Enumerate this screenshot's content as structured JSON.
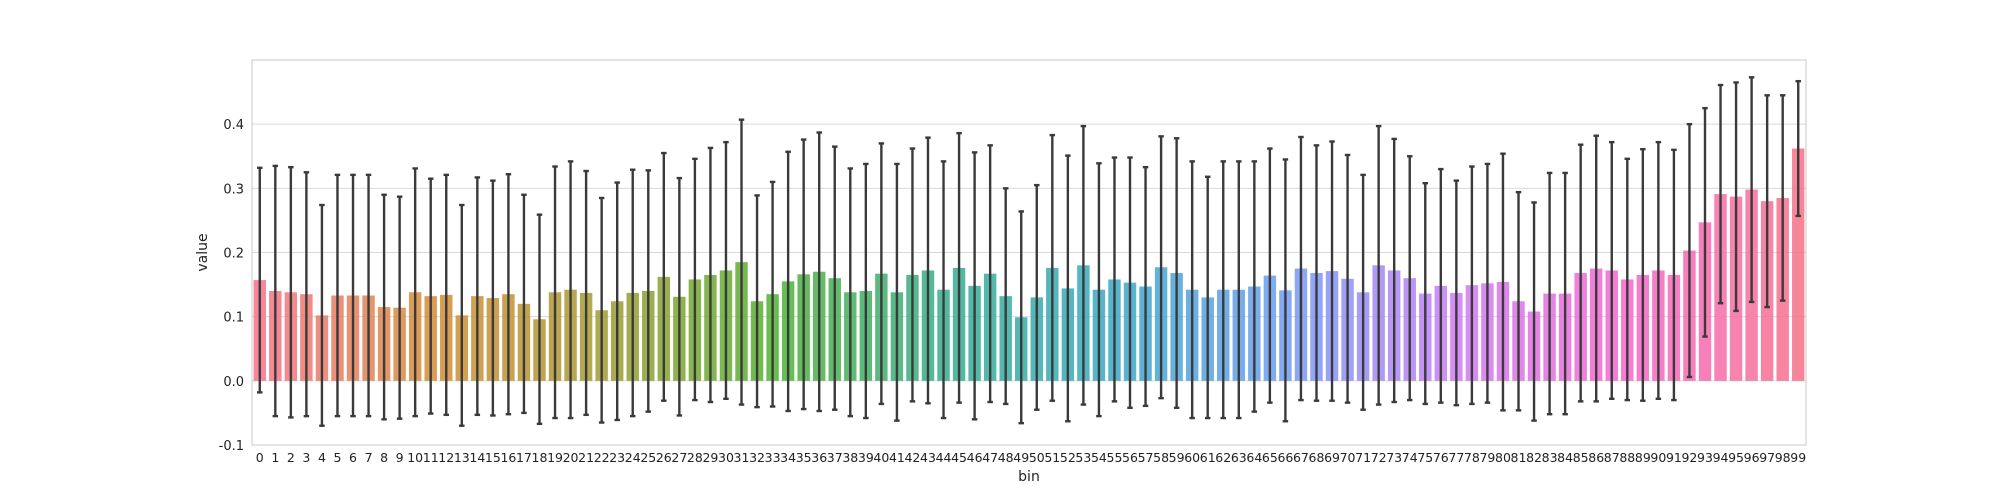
{
  "chart_data": {
    "type": "bar",
    "title": "",
    "xlabel": "bin",
    "ylabel": "value",
    "ylim": [
      -0.1,
      0.5
    ],
    "yticks": [
      -0.1,
      0.0,
      0.1,
      0.2,
      0.3,
      0.4
    ],
    "grid": true,
    "categories": [
      "0",
      "1",
      "2",
      "3",
      "4",
      "5",
      "6",
      "7",
      "8",
      "9",
      "10",
      "11",
      "12",
      "13",
      "14",
      "15",
      "16",
      "17",
      "18",
      "19",
      "20",
      "21",
      "22",
      "23",
      "24",
      "25",
      "26",
      "27",
      "28",
      "29",
      "30",
      "31",
      "32",
      "33",
      "34",
      "35",
      "36",
      "37",
      "38",
      "39",
      "40",
      "41",
      "42",
      "43",
      "44",
      "45",
      "46",
      "47",
      "48",
      "49",
      "50",
      "51",
      "52",
      "53",
      "54",
      "55",
      "56",
      "57",
      "58",
      "59",
      "60",
      "61",
      "62",
      "63",
      "64",
      "65",
      "66",
      "67",
      "68",
      "69",
      "70",
      "71",
      "72",
      "73",
      "74",
      "75",
      "76",
      "77",
      "78",
      "79",
      "80",
      "81",
      "82",
      "83",
      "84",
      "85",
      "86",
      "87",
      "88",
      "89",
      "90",
      "91",
      "92",
      "93",
      "94",
      "95",
      "96",
      "97",
      "98",
      "99"
    ],
    "values": [
      0.157,
      0.14,
      0.138,
      0.135,
      0.102,
      0.133,
      0.133,
      0.133,
      0.115,
      0.114,
      0.138,
      0.132,
      0.134,
      0.102,
      0.132,
      0.129,
      0.135,
      0.12,
      0.096,
      0.138,
      0.142,
      0.137,
      0.11,
      0.124,
      0.137,
      0.14,
      0.162,
      0.131,
      0.158,
      0.165,
      0.172,
      0.185,
      0.124,
      0.135,
      0.155,
      0.166,
      0.17,
      0.16,
      0.138,
      0.14,
      0.167,
      0.138,
      0.165,
      0.172,
      0.142,
      0.176,
      0.148,
      0.167,
      0.132,
      0.099,
      0.13,
      0.176,
      0.144,
      0.18,
      0.142,
      0.158,
      0.153,
      0.147,
      0.177,
      0.168,
      0.142,
      0.13,
      0.142,
      0.142,
      0.147,
      0.164,
      0.141,
      0.175,
      0.168,
      0.171,
      0.159,
      0.138,
      0.18,
      0.172,
      0.16,
      0.136,
      0.148,
      0.137,
      0.149,
      0.152,
      0.154,
      0.124,
      0.108,
      0.136,
      0.136,
      0.168,
      0.175,
      0.172,
      0.158,
      0.165,
      0.172,
      0.165,
      0.203,
      0.247,
      0.291,
      0.287,
      0.298,
      0.28,
      0.285,
      0.362
    ],
    "errors": [
      0.175,
      0.195,
      0.195,
      0.19,
      0.172,
      0.188,
      0.188,
      0.188,
      0.175,
      0.173,
      0.193,
      0.183,
      0.187,
      0.172,
      0.185,
      0.183,
      0.187,
      0.17,
      0.163,
      0.196,
      0.2,
      0.19,
      0.175,
      0.185,
      0.192,
      0.188,
      0.193,
      0.185,
      0.188,
      0.198,
      0.2,
      0.222,
      0.165,
      0.175,
      0.202,
      0.21,
      0.217,
      0.205,
      0.193,
      0.198,
      0.203,
      0.2,
      0.197,
      0.207,
      0.2,
      0.21,
      0.208,
      0.2,
      0.168,
      0.165,
      0.175,
      0.207,
      0.207,
      0.217,
      0.197,
      0.19,
      0.195,
      0.186,
      0.204,
      0.21,
      0.2,
      0.188,
      0.2,
      0.2,
      0.195,
      0.198,
      0.204,
      0.205,
      0.199,
      0.202,
      0.193,
      0.183,
      0.217,
      0.205,
      0.19,
      0.172,
      0.182,
      0.175,
      0.185,
      0.186,
      0.2,
      0.17,
      0.17,
      0.188,
      0.188,
      0.2,
      0.207,
      0.2,
      0.188,
      0.196,
      0.2,
      0.195,
      0.197,
      0.178,
      0.17,
      0.178,
      0.175,
      0.165,
      0.16,
      0.105
    ],
    "colors": [
      "#f77189",
      "#f7738a",
      "#f7758c",
      "#f7778d",
      "#f77a8e",
      "#f77c8f",
      "#f77e91",
      "#f78092",
      "#f78293",
      "#f78495",
      "#f78796",
      "#f78997",
      "#f68b99",
      "#f68d9a",
      "#f68f9b",
      "#f6919d",
      "#f6949e",
      "#f6969f",
      "#f698a1",
      "#f59aa2",
      "#f59ca3",
      "#f59ea5",
      "#f4a0a6",
      "#f3a2a7",
      "#f2a4a8",
      "#f0a6a9",
      "#eea8aa",
      "#ecaaab",
      "#eaacac",
      "#e8aeae",
      "#e5b0af",
      "#e3b2b0",
      "#e0b4b1",
      "#ddb6b2",
      "#dab8b3",
      "#d7bab4",
      "#d4bcb5",
      "#d0beb6",
      "#cdc0b7",
      "#c9c2b8",
      "#c5c4b9",
      "#c1c6ba",
      "#bcc8bb",
      "#b8cabc",
      "#b3ccbd",
      "#aecebe",
      "#a9d0bf",
      "#a3d1c0",
      "#9dd3c1",
      "#97d5c2",
      "#90d7c3",
      "#89d9c4",
      "#81dac5",
      "#79dcc6",
      "#70ddc7",
      "#67dfc8",
      "#5de0c9",
      "#52e1ca",
      "#46e3cb",
      "#39e4cc",
      "#2ae5cd",
      "#19e6ce",
      "#06e7cf",
      "#00e8d0",
      "#00e9d1",
      "#00e9d2",
      "#00ead3",
      "#00ebd4",
      "#00ebd5",
      "#00ecd6",
      "#00ecd7",
      "#00edd8",
      "#00edd9",
      "#00eeda",
      "#00eedb",
      "#00eedc",
      "#00efdd",
      "#00efde",
      "#00efdf",
      "#00efe0",
      "#00efe1",
      "#00f0e2",
      "#00f0e3",
      "#00f0e4",
      "#00f0e5",
      "#00f0e6",
      "#00f0e7",
      "#00f0e8",
      "#00f0e9",
      "#00f0ea",
      "#00f0eb",
      "#00f0ec",
      "#00f0ed",
      "#00f0ee",
      "#00f0ef",
      "#00f0f0",
      "#00f0f1",
      "#00f0f2",
      "#00f0f3",
      "#00f0f4"
    ],
    "palette_anchors": [
      "#f77189",
      "#d48c35",
      "#a39a31",
      "#50b131",
      "#35ad8b",
      "#38a8c5",
      "#6e9bf4",
      "#cc7af4",
      "#f565cc",
      "#f77189"
    ],
    "error_color": "#3a3a3a",
    "grid_color": "#d9d9d9",
    "frame_color": "#c8c8c8"
  }
}
